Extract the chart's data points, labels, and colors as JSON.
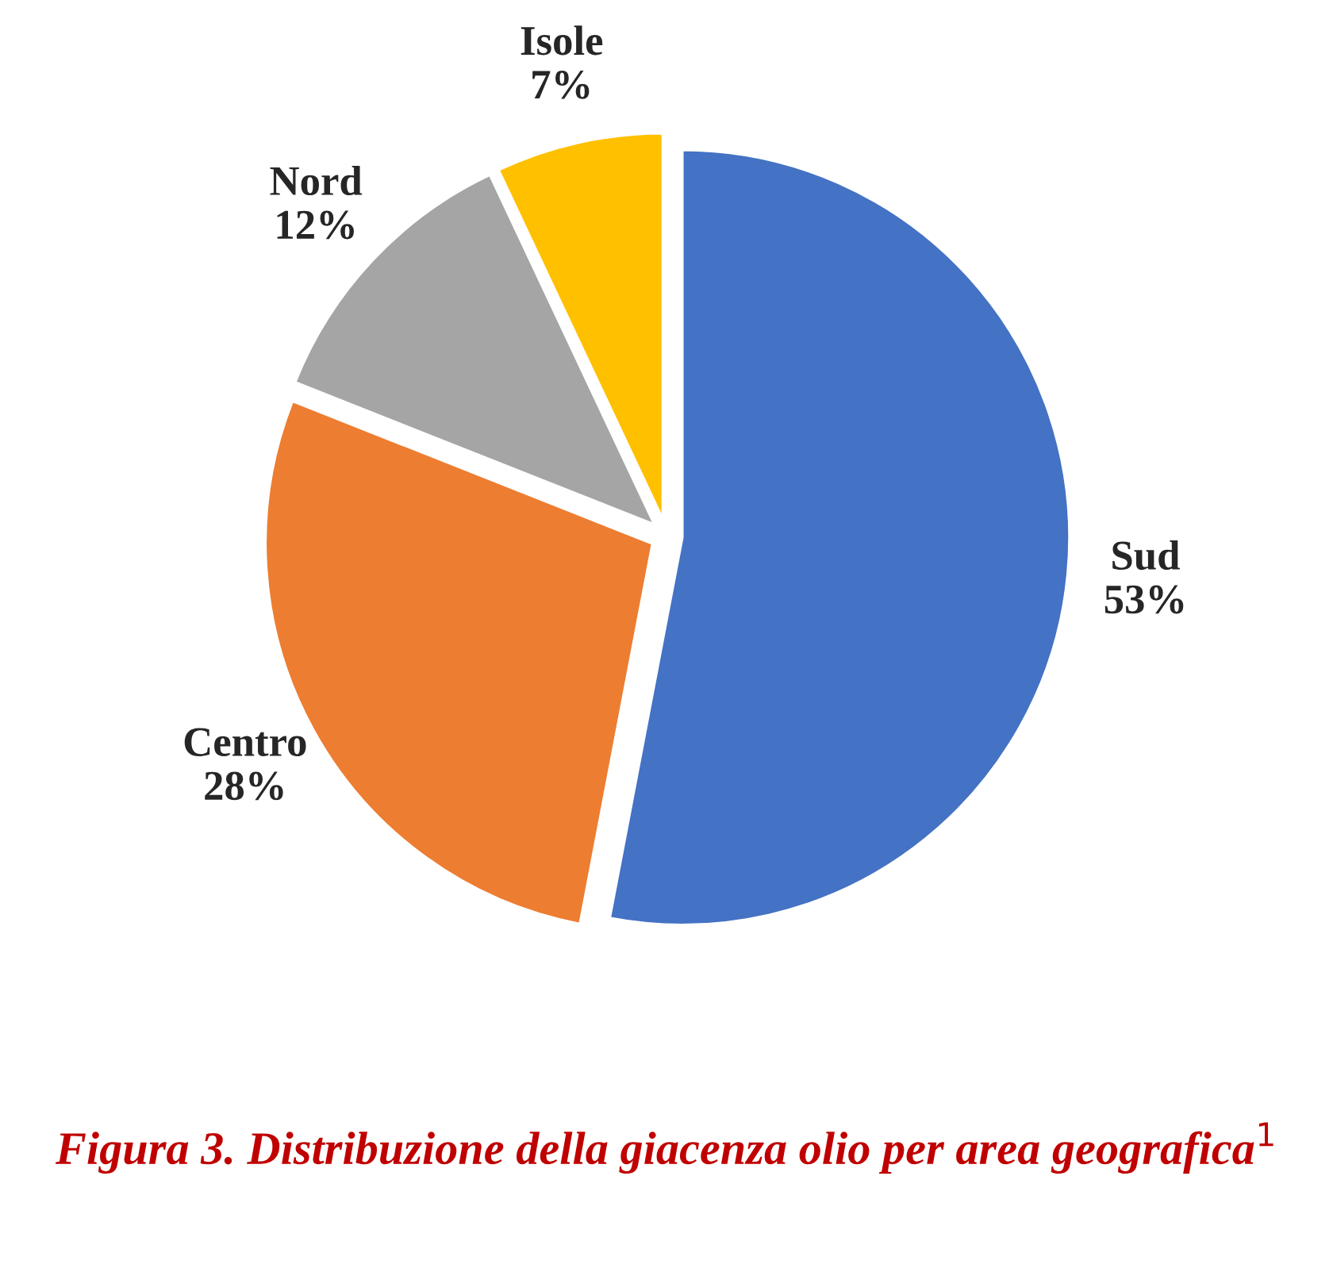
{
  "chart_data": {
    "type": "pie",
    "title": "Figura 3. Distribuzione della giacenza olio per area geografica$^{1}$",
    "categories": [
      "Sud",
      "Centro",
      "Nord",
      "Isole"
    ],
    "values": [
      53,
      28,
      12,
      7
    ],
    "value_labels": [
      "53%",
      "28%",
      "12%",
      "7%"
    ],
    "colors": [
      "#4472c4",
      "#ed7d31",
      "#a5a5a5",
      "#ffc000"
    ]
  }
}
